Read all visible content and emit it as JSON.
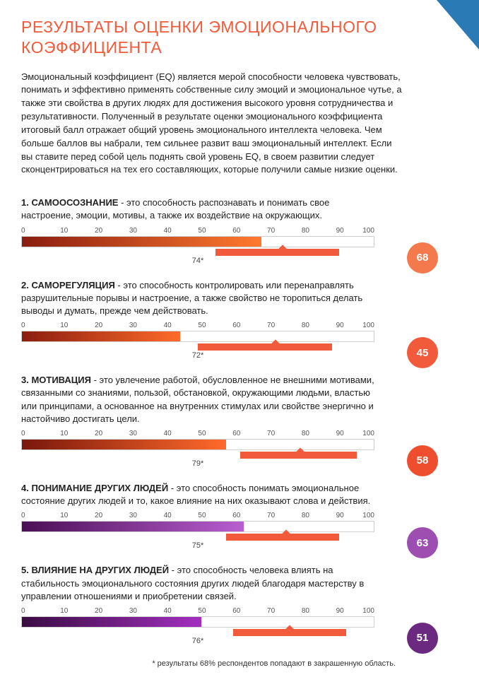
{
  "title": "РЕЗУЛЬТАТЫ ОЦЕНКИ ЭМОЦИОНАЛЬНОГО КОЭФФИЦИЕНТА",
  "title_color": "#f15a3a",
  "intro": "Эмоциональный коэффициент (EQ) является мерой способности человека чувствовать, понимать и эффективно применять собственные силу эмоций и эмоциональное чутье, а также эти свойства в других людях для достижения высокого уровня сотрудничества и результативности. Полученный в результате оценки эмоционального коэффициента итоговый балл отражает общий уровень эмоционального интеллекта человека.  Чем больше баллов вы набрали, тем сильнее развит ваш эмоциональный интеллект.  Если вы ставите перед собой цель поднять свой уровень EQ, в своем развитии следует сконцентрироваться на тех его составляющих, которые получили самые низкие оценки.",
  "axis": {
    "min": 0,
    "max": 100,
    "ticks": [
      0,
      10,
      20,
      30,
      40,
      50,
      60,
      70,
      80,
      90,
      100
    ]
  },
  "range_color": "#f15a3a",
  "sections": [
    {
      "num": "1.",
      "name": "САМООСОЗНАНИЕ",
      "desc": " - это способность распознавать и понимать свое настроение, эмоции, мотивы, а также их воздействие на окружающих.",
      "bar_value": 68,
      "bar_gradient": [
        "#8a1d0f",
        "#ff7a2f"
      ],
      "range": {
        "start": 55,
        "end": 90,
        "marker": 74,
        "label": "74*"
      },
      "badge": {
        "value": 68,
        "color": "#f47a4d"
      }
    },
    {
      "num": "2.",
      "name": "САМОРЕГУЛЯЦИЯ",
      "desc": " - это способность контролировать или перенаправлять разрушительные порывы и настроение, а также свойство не торопиться делать выводы и думать, прежде чем действовать.",
      "bar_value": 45,
      "bar_gradient": [
        "#8a1d0f",
        "#ff6a2a"
      ],
      "range": {
        "start": 50,
        "end": 88,
        "marker": 72,
        "label": "72*"
      },
      "badge": {
        "value": 45,
        "color": "#f15a3a"
      }
    },
    {
      "num": "3.",
      "name": "МОТИВАЦИЯ",
      "desc": " - это увлечение работой, обусловленное не внешними мотивами, связанными со знаниями, пользой, обстановкой, окружающими людьми, властью или принципами, а основанное на внутренних стимулах или свойстве энергично и настойчиво достигать цели.",
      "bar_value": 58,
      "bar_gradient": [
        "#7a170c",
        "#ff6a2a"
      ],
      "range": {
        "start": 62,
        "end": 95,
        "marker": 79,
        "label": "79*"
      },
      "badge": {
        "value": 58,
        "color": "#ef4e2e"
      }
    },
    {
      "num": "4.",
      "name": "ПОНИМАНИЕ ДРУГИХ ЛЮДЕЙ",
      "desc": " - это способность понимать эмоциональное состояние других людей и то, какое влияние на них оказывают слова и действия.",
      "bar_value": 63,
      "bar_gradient": [
        "#4a0f55",
        "#b95ed0"
      ],
      "range": {
        "start": 58,
        "end": 90,
        "marker": 75,
        "label": "75*"
      },
      "badge": {
        "value": 63,
        "color": "#9c4fb0"
      }
    },
    {
      "num": "5.",
      "name": "ВЛИЯНИЕ НА ДРУГИХ ЛЮДЕЙ",
      "desc": " - это способность человека влиять на стабильность эмоционального состояния других людей благодаря мастерству в управлении отношениями и приобретении связей.",
      "bar_value": 51,
      "bar_gradient": [
        "#3a0c42",
        "#a22fc0"
      ],
      "range": {
        "start": 60,
        "end": 92,
        "marker": 76,
        "label": "76*"
      },
      "badge": {
        "value": 51,
        "color": "#6b2a80"
      }
    }
  ],
  "footnote": "* результаты 68% респондентов попадают в закрашенную область."
}
